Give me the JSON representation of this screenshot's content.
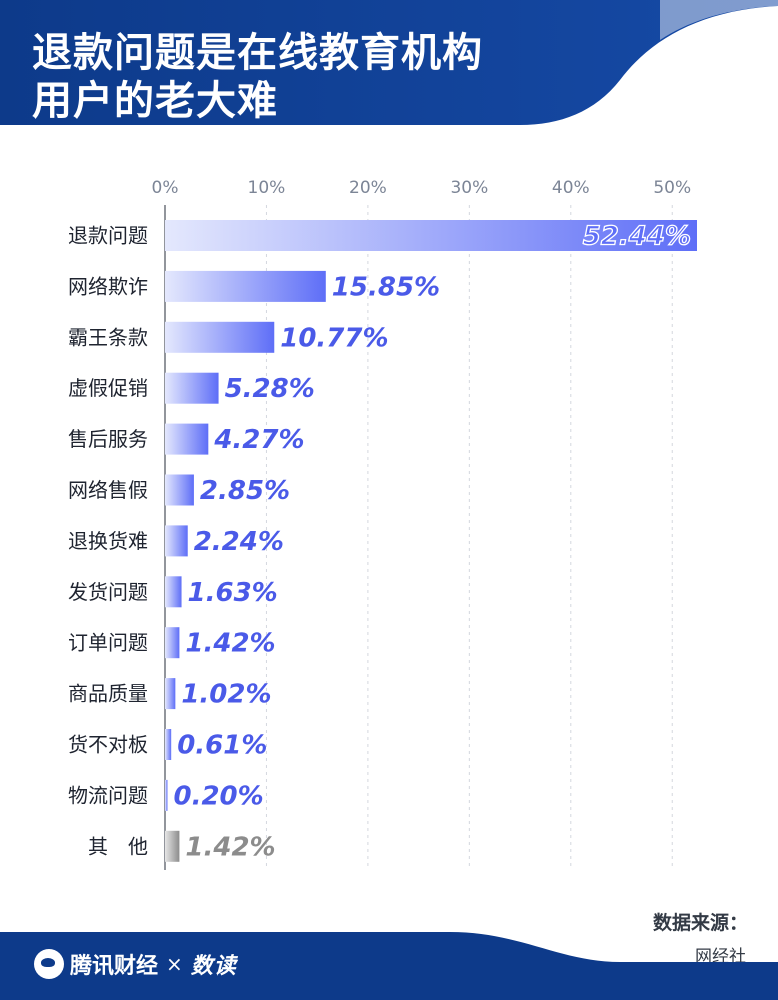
{
  "header": {
    "title_line1": "退款问题是在线教育机构",
    "title_line2": "用户的老大难"
  },
  "colors": {
    "header_bg": "#0d3a8a",
    "bar_accent": "#5e6ef7",
    "bar_light": "#e4e8fd",
    "other_bar": "#8c8c8c",
    "value_text": "#4a5ae8",
    "other_text": "#8c8c8c"
  },
  "chart_data": {
    "type": "bar",
    "orientation": "horizontal",
    "x_ticks": [
      "0%",
      "10%",
      "20%",
      "30%",
      "40%",
      "50%"
    ],
    "xlim": [
      0,
      52.44
    ],
    "grid": true,
    "categories": [
      "退款问题",
      "网络欺诈",
      "霸王条款",
      "虚假促销",
      "售后服务",
      "网络售假",
      "退换货难",
      "发货问题",
      "订单问题",
      "商品质量",
      "货不对板",
      "物流问题",
      "其　他"
    ],
    "values": [
      52.44,
      15.85,
      10.77,
      5.28,
      4.27,
      2.85,
      2.24,
      1.63,
      1.42,
      1.02,
      0.61,
      0.2,
      1.42
    ],
    "value_labels": [
      "52.44%",
      "15.85%",
      "10.77%",
      "5.28%",
      "4.27%",
      "2.85%",
      "2.24%",
      "1.63%",
      "1.42%",
      "1.02%",
      "0.61%",
      "0.20%",
      "1.42%"
    ]
  },
  "source": {
    "label": "数据来源：",
    "value": "网经社"
  },
  "footer": {
    "brand": "腾讯财经",
    "times": "×",
    "partner": "数读"
  }
}
